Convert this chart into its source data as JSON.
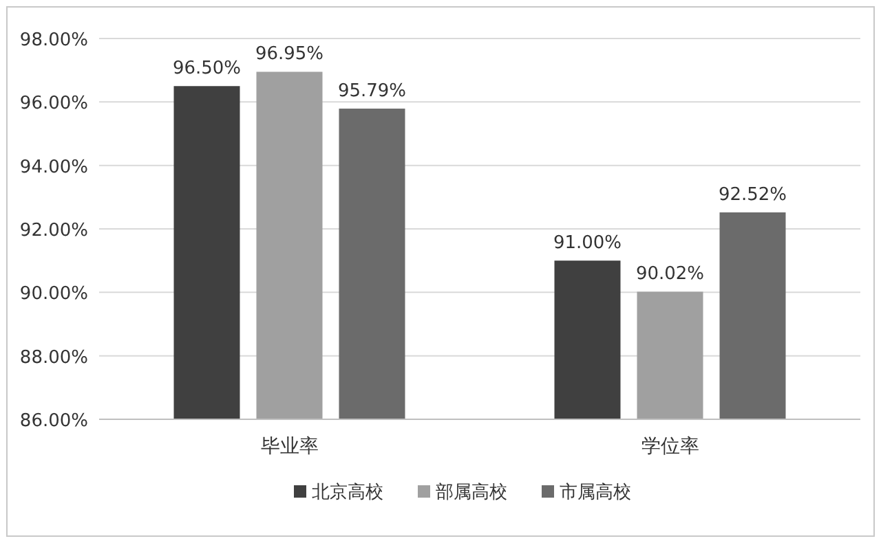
{
  "chart_data": {
    "type": "bar",
    "categories": [
      "毕业率",
      "学位率"
    ],
    "series": [
      {
        "name": "北京高校",
        "color": "#404040",
        "values": [
          96.5,
          91.0
        ],
        "value_labels": [
          "96.50%",
          "91.00%"
        ]
      },
      {
        "name": "部属高校",
        "color": "#a0a0a0",
        "values": [
          96.95,
          90.02
        ],
        "value_labels": [
          "96.95%",
          "90.02%"
        ]
      },
      {
        "name": "市属高校",
        "color": "#6b6b6b",
        "values": [
          95.79,
          92.52
        ],
        "value_labels": [
          "95.79%",
          "92.52%"
        ]
      }
    ],
    "ylim": [
      86,
      98
    ],
    "yticks": [
      {
        "value": 86,
        "label": "86.00%"
      },
      {
        "value": 88,
        "label": "88.00%"
      },
      {
        "value": 90,
        "label": "90.00%"
      },
      {
        "value": 92,
        "label": "92.00%"
      },
      {
        "value": 94,
        "label": "94.00%"
      },
      {
        "value": 96,
        "label": "96.00%"
      },
      {
        "value": 98,
        "label": "98.00%"
      }
    ],
    "grid": "y",
    "legend": "bottom"
  }
}
